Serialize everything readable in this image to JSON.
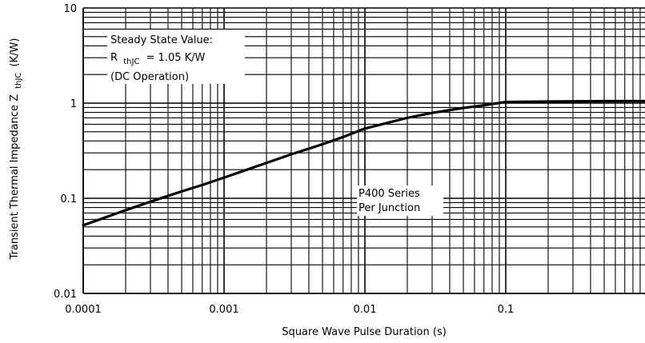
{
  "chart_data": {
    "type": "line",
    "x_scale": "log",
    "y_scale": "log",
    "xlim": [
      0.0001,
      1
    ],
    "ylim": [
      0.01,
      10
    ],
    "xlabel": "Square Wave Pulse Duration (s)",
    "ylabel_main": "Transient Thermal Impedance Z",
    "ylabel_sub": "thJC",
    "ylabel_unit": "(K/W)",
    "x_ticks": [
      {
        "value": 0.0001,
        "label": "0.0001"
      },
      {
        "value": 0.001,
        "label": "0.001"
      },
      {
        "value": 0.01,
        "label": "0.01"
      },
      {
        "value": 0.1,
        "label": "0.1"
      }
    ],
    "y_ticks": [
      {
        "value": 10,
        "label": "10"
      },
      {
        "value": 1,
        "label": "1"
      },
      {
        "value": 0.1,
        "label": "0.1"
      },
      {
        "value": 0.01,
        "label": "0.01"
      }
    ],
    "grid": true,
    "series": [
      {
        "x": [
          0.0001,
          0.0002,
          0.0003,
          0.0005,
          0.0007,
          0.001,
          0.002,
          0.003,
          0.005,
          0.007,
          0.01,
          0.02,
          0.03,
          0.05,
          0.07,
          0.1,
          0.2,
          0.5,
          1
        ],
        "y": [
          0.052,
          0.075,
          0.092,
          0.118,
          0.138,
          0.165,
          0.235,
          0.29,
          0.37,
          0.44,
          0.54,
          0.7,
          0.79,
          0.89,
          0.95,
          1.03,
          1.04,
          1.05,
          1.05
        ]
      }
    ],
    "annotations": {
      "steady_line1": "Steady State Value:",
      "steady_r": "R",
      "steady_r_sub": "thJC",
      "steady_r_value": "= 1.05 K/W",
      "steady_line3": "(DC Operation)",
      "series_line1": "P400 Series",
      "series_line2": "Per Junction"
    }
  }
}
